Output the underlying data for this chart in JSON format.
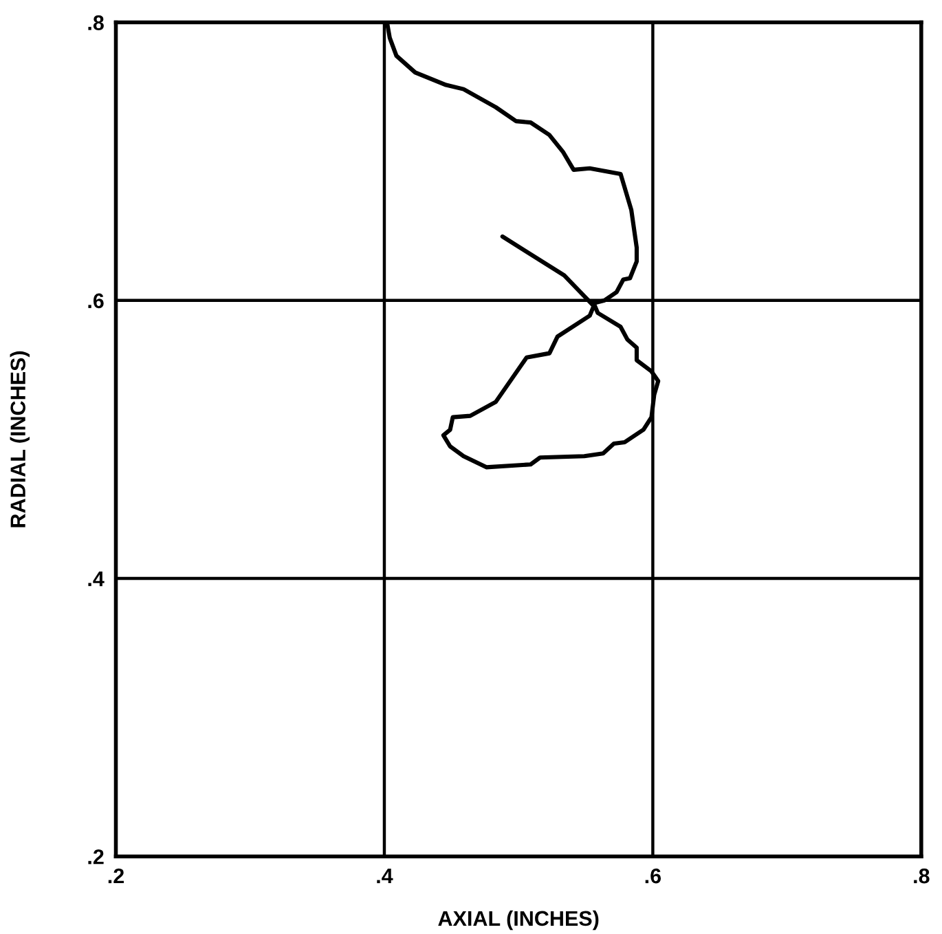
{
  "chart_data": {
    "type": "line",
    "xlabel": "AXIAL (INCHES)",
    "ylabel": "RADIAL (INCHES)",
    "series": [
      {
        "color": "#000000",
        "x": [
          0.402,
          0.404,
          0.409,
          0.423,
          0.446,
          0.459,
          0.483,
          0.498,
          0.509,
          0.523,
          0.533,
          0.541,
          0.553,
          0.576,
          0.584,
          0.588,
          0.588,
          0.583,
          0.578,
          0.573,
          0.564,
          0.556,
          0.559,
          0.576,
          0.581,
          0.588,
          0.588,
          0.599,
          0.604,
          0.601,
          0.599,
          0.593,
          0.579,
          0.571,
          0.563,
          0.549,
          0.516,
          0.509,
          0.476,
          0.459,
          0.449,
          0.444,
          0.449,
          0.451,
          0.464,
          0.483,
          0.506,
          0.523,
          0.529,
          0.553,
          0.556,
          0.534,
          0.488
        ],
        "values": [
          0.8,
          0.789,
          0.776,
          0.764,
          0.755,
          0.752,
          0.739,
          0.729,
          0.728,
          0.719,
          0.707,
          0.694,
          0.695,
          0.691,
          0.665,
          0.638,
          0.628,
          0.616,
          0.615,
          0.606,
          0.6,
          0.598,
          0.591,
          0.581,
          0.572,
          0.566,
          0.557,
          0.549,
          0.542,
          0.532,
          0.516,
          0.507,
          0.498,
          0.497,
          0.49,
          0.488,
          0.487,
          0.482,
          0.48,
          0.488,
          0.495,
          0.503,
          0.507,
          0.516,
          0.517,
          0.527,
          0.559,
          0.562,
          0.574,
          0.589,
          0.596,
          0.618,
          0.646
        ]
      }
    ],
    "xlim": [
      0.2,
      0.8
    ],
    "ylim": [
      0.2,
      0.8
    ],
    "xticks": [
      {
        "value": 0.2,
        "label": ".2"
      },
      {
        "value": 0.4,
        "label": ".4"
      },
      {
        "value": 0.6,
        "label": ".6"
      },
      {
        "value": 0.8,
        "label": ".8"
      }
    ],
    "yticks": [
      {
        "value": 0.2,
        "label": ".2"
      },
      {
        "value": 0.4,
        "label": ".4"
      },
      {
        "value": 0.6,
        "label": ".6"
      },
      {
        "value": 0.8,
        "label": ".8"
      }
    ],
    "grid": true,
    "line_style": "solid",
    "marker": "none"
  }
}
